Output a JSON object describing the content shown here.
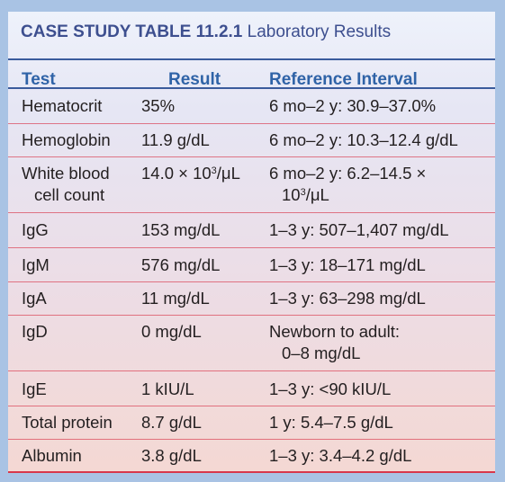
{
  "title": {
    "bold": "CASE STUDY TABLE 11.2.1",
    "light": "Laboratory Results"
  },
  "headers": {
    "test": "Test",
    "result": "Result",
    "reference": "Reference Interval"
  },
  "rows": [
    {
      "test": "Hematocrit",
      "result": "35%",
      "reference": "6 mo–2 y: 30.9–37.0%"
    },
    {
      "test": "Hemoglobin",
      "result": "11.9 g/dL",
      "reference": "6 mo–2 y: 10.3–12.4 g/dL"
    },
    {
      "test_line1": "White blood",
      "test_line2": "cell count",
      "result_pre": "14.0 × 10",
      "result_sup": "3",
      "result_post": "/μL",
      "ref_line1": "6 mo–2 y: 6.2–14.5 ×",
      "ref_line2_pre": "10",
      "ref_line2_sup": "3",
      "ref_line2_post": "/μL"
    },
    {
      "test": "IgG",
      "result": "153 mg/dL",
      "reference": "1–3 y: 507–1,407 mg/dL"
    },
    {
      "test": "IgM",
      "result": "576 mg/dL",
      "reference": "1–3 y: 18–171 mg/dL"
    },
    {
      "test": "IgA",
      "result": "11 mg/dL",
      "reference": "1–3 y: 63–298 mg/dL"
    },
    {
      "test": "IgD",
      "result": "0 mg/dL",
      "ref_line1": "Newborn to adult:",
      "ref_line2": "0–8 mg/dL"
    },
    {
      "test": "IgE",
      "result": "1 kIU/L",
      "reference": "1–3 y: <90 kIU/L"
    },
    {
      "test": "Total protein",
      "result": "8.7 g/dL",
      "reference": "1 y: 5.4–7.5 g/dL"
    },
    {
      "test": "Albumin",
      "result": "3.8 g/dL",
      "reference": "1–3 y: 3.4–4.2 g/dL"
    }
  ],
  "colors": {
    "outer_background": "#a9c3e4",
    "title_text": "#3d4f8f",
    "header_text": "#2f63a7",
    "rule_blue": "#3a5b9c",
    "rule_red": "#d8384b"
  }
}
